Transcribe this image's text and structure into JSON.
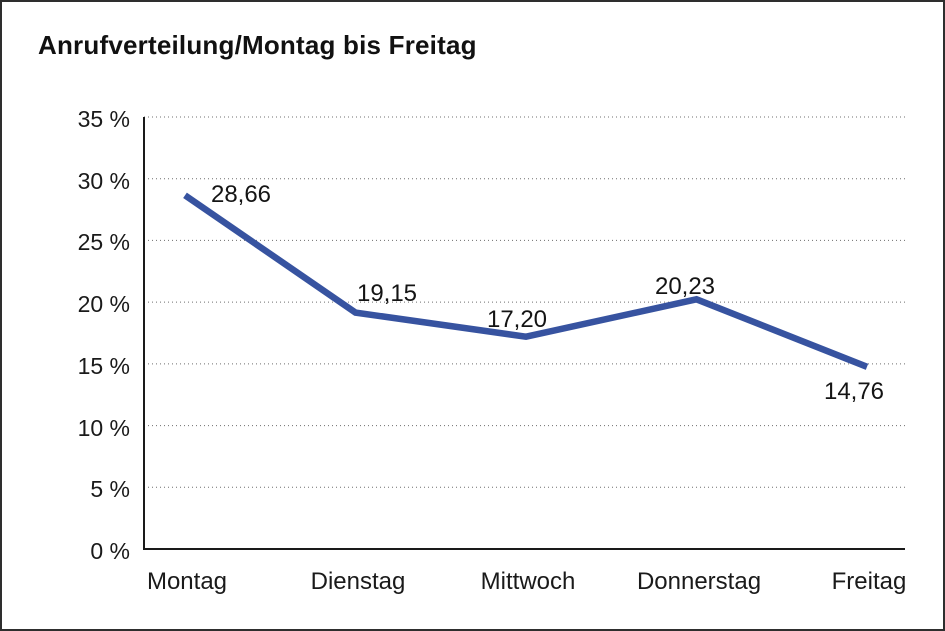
{
  "window": {
    "background": "#ffffff",
    "frame_border_color": "#2e2e2e"
  },
  "chart_data": {
    "type": "line",
    "title": "Anrufverteilung/Montag bis Freitag",
    "categories": [
      "Montag",
      "Dienstag",
      "Mittwoch",
      "Donnerstag",
      "Freitag"
    ],
    "series": [
      {
        "name": "Anrufverteilung",
        "values": [
          28.66,
          19.15,
          17.2,
          20.23,
          14.76
        ]
      }
    ],
    "point_labels": [
      "28,66",
      "19,15",
      "17,20",
      "20,23",
      "14,76"
    ],
    "y_tick_labels": [
      "35 %",
      "30 %",
      "25 %",
      "20 %",
      "15 %",
      "10 %",
      "5 %",
      "0 %"
    ],
    "y_ticks": [
      35,
      30,
      25,
      20,
      15,
      10,
      5,
      0
    ],
    "ylim": [
      0,
      35
    ],
    "xlabel": "",
    "ylabel": "",
    "grid": "horizontal-dotted",
    "legend": "none",
    "line_color": "#3753a0",
    "grid_color": "#6f6f6f",
    "axis_color": "#1a1a1a",
    "label_color": "#141414"
  }
}
